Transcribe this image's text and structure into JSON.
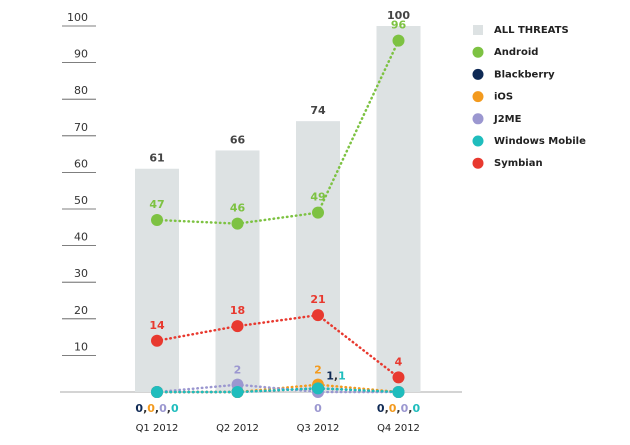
{
  "chart_data": {
    "type": "bar_line",
    "categories": [
      "Q1 2012",
      "Q2 2012",
      "Q3 2012",
      "Q4 2012"
    ],
    "bar_series": {
      "name": "ALL THREATS",
      "color": "#dde2e3",
      "values": [
        61,
        66,
        74,
        100
      ]
    },
    "series": [
      {
        "name": "Android",
        "color": "#7dc242",
        "values": [
          47,
          46,
          49,
          96
        ]
      },
      {
        "name": "Blackberry",
        "color": "#0f2a55",
        "values": [
          0,
          0,
          1,
          0
        ],
        "value_labels": [
          "0",
          null,
          "1",
          "0"
        ]
      },
      {
        "name": "iOS",
        "color": "#f39a1e",
        "values": [
          0,
          0,
          2,
          0
        ],
        "value_labels": [
          "0",
          null,
          "2",
          "0"
        ]
      },
      {
        "name": "J2ME",
        "color": "#9b97d0",
        "values": [
          0,
          2,
          0,
          0
        ],
        "value_labels": [
          "0",
          "2",
          "0",
          "0"
        ]
      },
      {
        "name": "Windows Mobile",
        "color": "#1fbdbd",
        "values": [
          0,
          0,
          1,
          0
        ],
        "value_labels": [
          "0",
          null,
          "1",
          "0"
        ]
      },
      {
        "name": "Symbian",
        "color": "#e8392f",
        "values": [
          14,
          18,
          21,
          4
        ]
      }
    ],
    "label_separator": ",",
    "ylim": [
      0,
      100
    ],
    "yticks": [
      10,
      20,
      30,
      40,
      50,
      60,
      70,
      80,
      90,
      100
    ]
  }
}
